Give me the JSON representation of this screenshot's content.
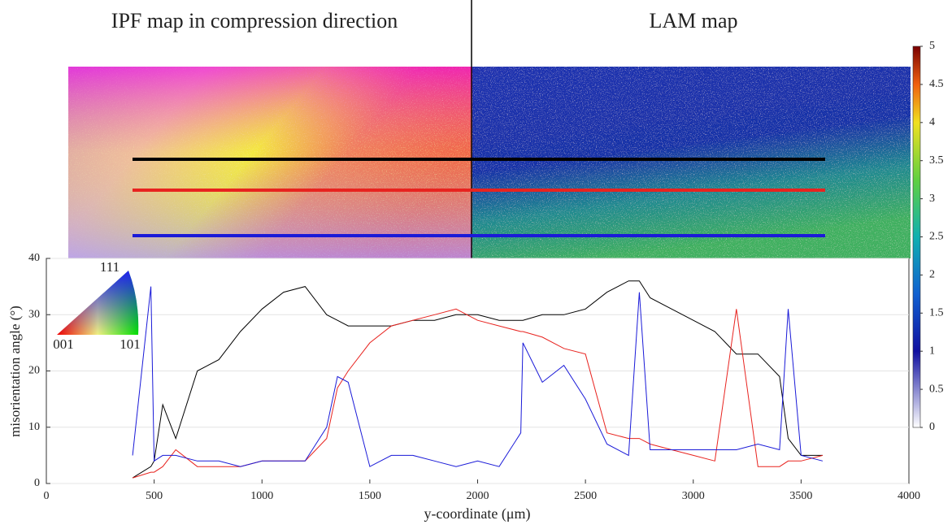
{
  "chart_data": {
    "type": "line",
    "panel_titles": [
      "IPF map in compression direction",
      "LAM map"
    ],
    "xlabel": "y-coordinate (μm)",
    "ylabel": "misorientation angle (°)",
    "x": [
      400,
      485,
      500,
      540,
      600,
      700,
      800,
      900,
      1000,
      1100,
      1200,
      1300,
      1350,
      1400,
      1500,
      1600,
      1700,
      1800,
      1900,
      2000,
      2100,
      2200,
      2210,
      2300,
      2400,
      2500,
      2600,
      2700,
      2750,
      2800,
      2900,
      3000,
      3100,
      3200,
      3300,
      3400,
      3440,
      3500,
      3600
    ],
    "series": [
      {
        "color": "#000000",
        "values": [
          1,
          3,
          4,
          14,
          8,
          20,
          22,
          27,
          31,
          34,
          35,
          30,
          29,
          28,
          28,
          28,
          29,
          29,
          30,
          30,
          29,
          29,
          29,
          30,
          30,
          31,
          34,
          36,
          36,
          33,
          31,
          29,
          27,
          23,
          23,
          19,
          8,
          5,
          5
        ]
      },
      {
        "color": "#e8231f",
        "values": [
          1,
          2,
          2,
          3,
          6,
          3,
          3,
          3,
          4,
          4,
          4,
          8,
          17,
          20,
          25,
          28,
          29,
          30,
          31,
          29,
          28,
          27,
          27,
          26,
          24,
          23,
          9,
          8,
          8,
          7,
          6,
          5,
          4,
          31,
          3,
          3,
          4,
          4,
          5
        ]
      },
      {
        "color": "#1a1ad8",
        "values": [
          5,
          35,
          4,
          5,
          5,
          4,
          4,
          3,
          4,
          4,
          4,
          10,
          19,
          18,
          3,
          5,
          5,
          4,
          3,
          4,
          3,
          9,
          25,
          18,
          21,
          15,
          7,
          5,
          34,
          6,
          6,
          6,
          6,
          6,
          7,
          6,
          31,
          5,
          4
        ]
      }
    ],
    "xlim": [
      0,
      4000
    ],
    "xticks": [
      0,
      500,
      1000,
      1500,
      2000,
      2500,
      3000,
      3500,
      4000
    ],
    "ylim": [
      0,
      40
    ],
    "yticks": [
      0,
      10,
      20,
      30,
      40
    ],
    "grid": true,
    "ipf_legend": [
      "111",
      "001",
      "101"
    ],
    "colorbar": {
      "lim": [
        0,
        5
      ],
      "ticks": [
        0,
        0.5,
        1,
        1.5,
        2,
        2.5,
        3,
        3.5,
        4,
        4.5,
        5
      ]
    }
  }
}
